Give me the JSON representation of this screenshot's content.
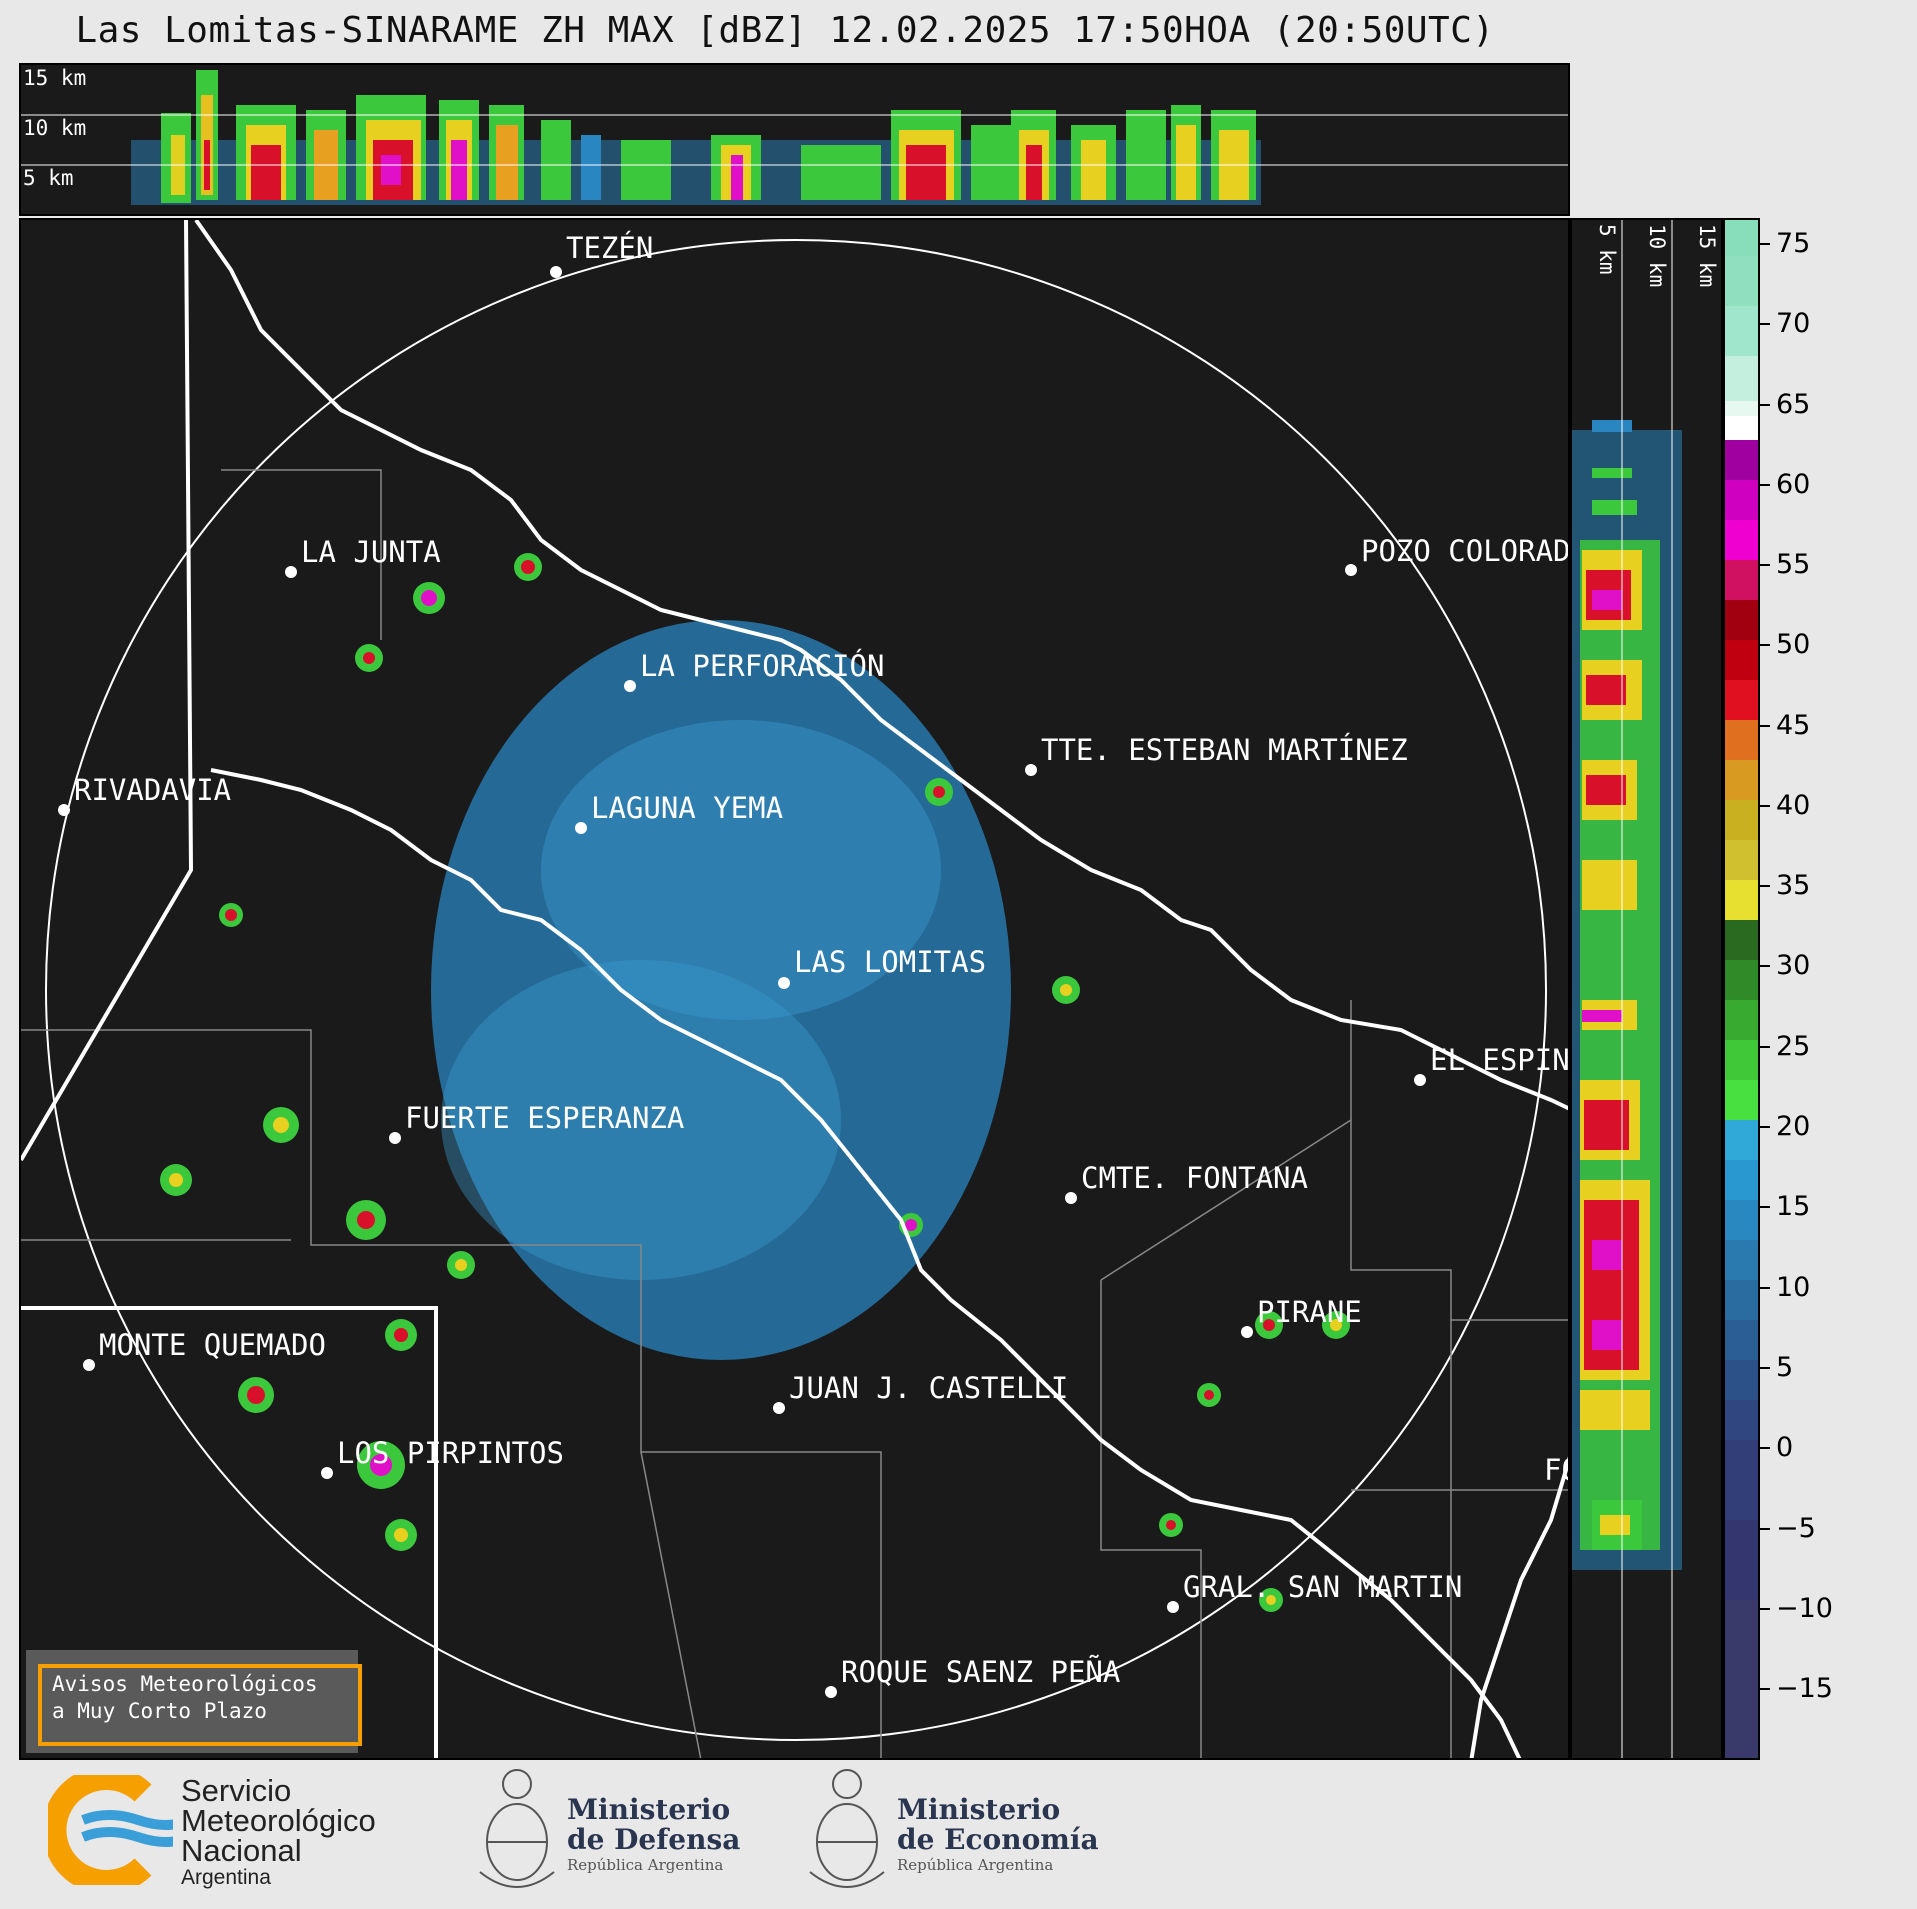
{
  "title": "Las Lomitas-SINARAME ZH MAX [dBZ] 12.02.2025 17:50HOA (20:50UTC)",
  "top_panel": {
    "alt_labels": [
      "15 km",
      "10 km",
      "5 km"
    ]
  },
  "right_panel": {
    "alt_labels": [
      "5 km",
      "10 km",
      "15 km"
    ]
  },
  "cities": [
    {
      "name": "TEZÉN"
    },
    {
      "name": "LA JUNTA"
    },
    {
      "name": "POZO COLORADO"
    },
    {
      "name": "LA PERFORACIÓN"
    },
    {
      "name": "TTE. ESTEBAN MARTÍNEZ"
    },
    {
      "name": "RIVADAVIA"
    },
    {
      "name": "LAGUNA YEMA"
    },
    {
      "name": "LAS LOMITAS"
    },
    {
      "name": "EL ESPINILLO"
    },
    {
      "name": "FUERTE ESPERANZA"
    },
    {
      "name": "CMTE. FONTANA"
    },
    {
      "name": "PIRANE"
    },
    {
      "name": "MONTE QUEMADO"
    },
    {
      "name": "JUAN J. CASTELLI"
    },
    {
      "name": "LOS PIRPINTOS"
    },
    {
      "name": "GRAL. SAN MARTIN"
    },
    {
      "name": "ROQUE SAENZ PEÑA"
    },
    {
      "name": "FORMOSA"
    }
  ],
  "colorbar": {
    "ticks": [
      "75",
      "70",
      "65",
      "60",
      "55",
      "50",
      "45",
      "40",
      "35",
      "30",
      "25",
      "20",
      "15",
      "10",
      "5",
      "0",
      "−5",
      "−10",
      "−15"
    ],
    "range": [
      -20,
      77
    ]
  },
  "avisos": {
    "line1": "Avisos Meteorológicos",
    "line2": "a Muy Corto Plazo"
  },
  "footer": {
    "smn": {
      "line1": "Servicio",
      "line2": "Meteorológico",
      "line3": "Nacional",
      "line4": "Argentina"
    },
    "defensa": {
      "line1": "Ministerio",
      "line2": "de Defensa",
      "line3": "República Argentina"
    },
    "economia": {
      "line1": "Ministerio",
      "line2": "de Economía",
      "line3": "República Argentina"
    }
  },
  "colors": {
    "background": "#1a1a1a",
    "logo_orange": "#f5a000",
    "logo_blue": "#3a9fd8",
    "frame": "#f5a000"
  }
}
